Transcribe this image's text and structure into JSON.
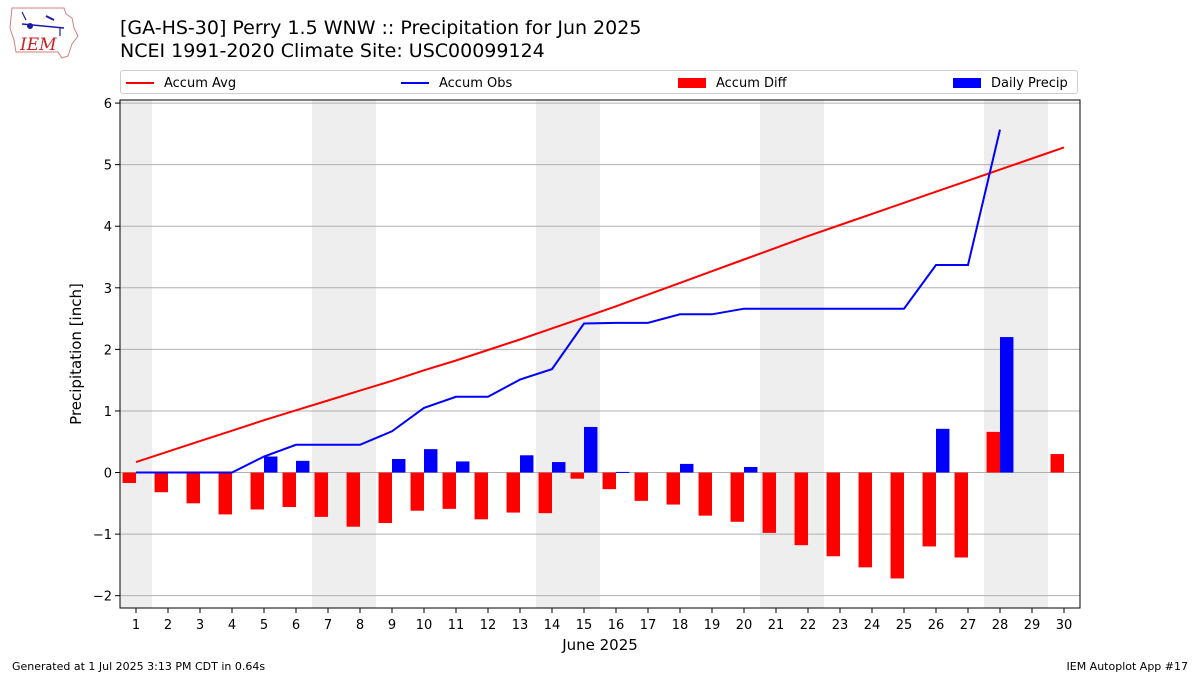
{
  "logo": {
    "text": "IEM",
    "name": "iem-logo-icon"
  },
  "title_line1": "[GA-HS-30] Perry 1.5 WNW :: Precipitation for Jun 2025",
  "title_line2": "NCEI 1991-2020 Climate Site: USC00099124",
  "footer_left": "Generated at 1 Jul 2025 3:13 PM CDT in 0.64s",
  "footer_right": "IEM Autoplot App #17",
  "colors": {
    "avg": "#ff0000",
    "obs": "#0000ff",
    "diff": "#ff0000",
    "daily": "#0000ff",
    "weekend": "#eeeeee",
    "grid": "#b0b0b0"
  },
  "chart_data": {
    "type": "bar",
    "xlabel": "June 2025",
    "ylabel": "Precipitation [inch]",
    "ylim": [
      -2.2,
      6.05
    ],
    "yticks": [
      -2,
      -1,
      0,
      1,
      2,
      3,
      4,
      5,
      6
    ],
    "ytick_labels": [
      "−2",
      "−1",
      "0",
      "1",
      "2",
      "3",
      "4",
      "5",
      "6"
    ],
    "grid": "horizontal",
    "legend_position": "top",
    "days": [
      1,
      2,
      3,
      4,
      5,
      6,
      7,
      8,
      9,
      10,
      11,
      12,
      13,
      14,
      15,
      16,
      17,
      18,
      19,
      20,
      21,
      22,
      23,
      24,
      25,
      26,
      27,
      28,
      29,
      30
    ],
    "shaded_days": [
      1,
      7,
      8,
      14,
      15,
      21,
      22,
      28,
      29
    ],
    "series": [
      {
        "name": "Accum Avg",
        "kind": "line",
        "values": [
          0.17,
          0.34,
          0.51,
          0.68,
          0.85,
          1.01,
          1.17,
          1.33,
          1.49,
          1.66,
          1.82,
          1.99,
          2.16,
          2.34,
          2.52,
          2.7,
          2.89,
          3.08,
          3.27,
          3.46,
          3.65,
          3.84,
          4.02,
          4.2,
          4.38,
          4.56,
          4.74,
          4.92,
          5.1,
          5.28
        ]
      },
      {
        "name": "Accum Obs",
        "kind": "line",
        "values": [
          0.0,
          0.0,
          0.0,
          0.0,
          0.26,
          0.45,
          0.45,
          0.45,
          0.67,
          1.05,
          1.23,
          1.23,
          1.51,
          1.68,
          2.42,
          2.43,
          2.43,
          2.57,
          2.57,
          2.66,
          2.66,
          2.66,
          2.66,
          2.66,
          2.66,
          3.37,
          3.37,
          5.57,
          null,
          null
        ]
      },
      {
        "name": "Accum Diff",
        "kind": "bar",
        "values": [
          -0.17,
          -0.32,
          -0.5,
          -0.68,
          -0.6,
          -0.56,
          -0.72,
          -0.88,
          -0.82,
          -0.62,
          -0.59,
          -0.76,
          -0.65,
          -0.66,
          -0.1,
          -0.27,
          -0.46,
          -0.52,
          -0.7,
          -0.8,
          -0.98,
          -1.18,
          -1.36,
          -1.54,
          -1.72,
          -1.2,
          -1.38,
          0.66,
          null,
          0.3
        ]
      },
      {
        "name": "Daily Precip",
        "kind": "bar",
        "values": [
          0,
          0,
          0,
          0,
          0.26,
          0.19,
          0,
          0,
          0.22,
          0.38,
          0.18,
          0,
          0.28,
          0.17,
          0.74,
          0.01,
          0,
          0.14,
          0,
          0.09,
          0,
          0,
          0,
          0,
          0,
          0.71,
          0,
          2.2,
          null,
          null
        ]
      }
    ]
  }
}
